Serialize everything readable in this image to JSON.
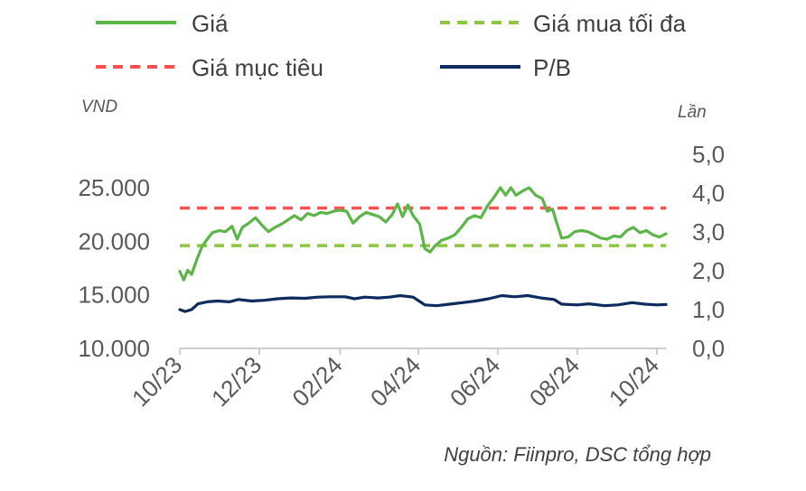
{
  "chart_data": {
    "type": "line",
    "y_left_label": "VND",
    "y_right_label": "Lần",
    "y_left_ticks": [
      "10.000",
      "15.000",
      "20.000",
      "25.000"
    ],
    "y_left_tick_values": [
      10000,
      15000,
      20000,
      25000
    ],
    "y_left_lim": [
      10000,
      28500
    ],
    "y_right_ticks": [
      "0,0",
      "1,0",
      "2,0",
      "3,0",
      "4,0",
      "5,0"
    ],
    "y_right_tick_values": [
      0,
      1,
      2,
      3,
      4,
      5
    ],
    "y_right_lim": [
      0,
      5
    ],
    "x_tick_labels": [
      "10/23",
      "12/23",
      "02/24",
      "04/24",
      "06/24",
      "08/24",
      "10/24"
    ],
    "x_tick_values": [
      "2023-10-01",
      "2023-12-01",
      "2024-02-01",
      "2024-04-01",
      "2024-06-01",
      "2024-08-01",
      "2024-10-01"
    ],
    "x_lim": [
      "2023-10-01",
      "2024-10-08"
    ],
    "grid": false,
    "legend_position": "top",
    "source": "Nguồn: Fiinpro, DSC tổng hợp",
    "series": [
      {
        "name": "Giá",
        "axis": "left",
        "style": "solid",
        "color": "#5cb548",
        "points": [
          [
            "2023-10-01",
            17200
          ],
          [
            "2023-10-04",
            16400
          ],
          [
            "2023-10-07",
            17300
          ],
          [
            "2023-10-10",
            16900
          ],
          [
            "2023-10-14",
            18300
          ],
          [
            "2023-10-18",
            19500
          ],
          [
            "2023-10-22",
            20200
          ],
          [
            "2023-10-26",
            20800
          ],
          [
            "2023-10-31",
            21000
          ],
          [
            "2023-11-05",
            20900
          ],
          [
            "2023-11-10",
            21400
          ],
          [
            "2023-11-14",
            20200
          ],
          [
            "2023-11-18",
            21300
          ],
          [
            "2023-11-23",
            21700
          ],
          [
            "2023-11-28",
            22200
          ],
          [
            "2023-12-03",
            21500
          ],
          [
            "2023-12-08",
            20900
          ],
          [
            "2023-12-13",
            21300
          ],
          [
            "2023-12-18",
            21600
          ],
          [
            "2023-12-23",
            22000
          ],
          [
            "2023-12-28",
            22400
          ],
          [
            "2024-01-02",
            22000
          ],
          [
            "2024-01-07",
            22600
          ],
          [
            "2024-01-12",
            22400
          ],
          [
            "2024-01-17",
            22700
          ],
          [
            "2024-01-22",
            22600
          ],
          [
            "2024-01-27",
            22800
          ],
          [
            "2024-02-01",
            22900
          ],
          [
            "2024-02-06",
            22800
          ],
          [
            "2024-02-11",
            21700
          ],
          [
            "2024-02-16",
            22300
          ],
          [
            "2024-02-21",
            22700
          ],
          [
            "2024-02-26",
            22500
          ],
          [
            "2024-03-02",
            22300
          ],
          [
            "2024-03-07",
            21800
          ],
          [
            "2024-03-12",
            22500
          ],
          [
            "2024-03-16",
            23500
          ],
          [
            "2024-03-20",
            22300
          ],
          [
            "2024-03-24",
            23400
          ],
          [
            "2024-03-28",
            22400
          ],
          [
            "2024-04-02",
            21600
          ],
          [
            "2024-04-06",
            19300
          ],
          [
            "2024-04-10",
            19000
          ],
          [
            "2024-04-14",
            19600
          ],
          [
            "2024-04-19",
            20100
          ],
          [
            "2024-04-24",
            20300
          ],
          [
            "2024-04-29",
            20600
          ],
          [
            "2024-05-04",
            21300
          ],
          [
            "2024-05-09",
            22100
          ],
          [
            "2024-05-14",
            22400
          ],
          [
            "2024-05-19",
            22200
          ],
          [
            "2024-05-24",
            23300
          ],
          [
            "2024-05-29",
            24100
          ],
          [
            "2024-06-03",
            25000
          ],
          [
            "2024-06-07",
            24300
          ],
          [
            "2024-06-11",
            25000
          ],
          [
            "2024-06-15",
            24300
          ],
          [
            "2024-06-20",
            24700
          ],
          [
            "2024-06-25",
            25000
          ],
          [
            "2024-06-30",
            24300
          ],
          [
            "2024-07-05",
            24000
          ],
          [
            "2024-07-09",
            22800
          ],
          [
            "2024-07-13",
            23000
          ],
          [
            "2024-07-16",
            21800
          ],
          [
            "2024-07-20",
            20300
          ],
          [
            "2024-07-25",
            20400
          ],
          [
            "2024-07-30",
            20900
          ],
          [
            "2024-08-04",
            21000
          ],
          [
            "2024-08-09",
            20900
          ],
          [
            "2024-08-14",
            20600
          ],
          [
            "2024-08-19",
            20300
          ],
          [
            "2024-08-24",
            20200
          ],
          [
            "2024-08-29",
            20500
          ],
          [
            "2024-09-03",
            20400
          ],
          [
            "2024-09-08",
            21000
          ],
          [
            "2024-09-13",
            21300
          ],
          [
            "2024-09-18",
            20800
          ],
          [
            "2024-09-23",
            21000
          ],
          [
            "2024-09-28",
            20600
          ],
          [
            "2024-10-03",
            20400
          ],
          [
            "2024-10-08",
            20700
          ]
        ]
      },
      {
        "name": "Giá mua tối đa",
        "axis": "left",
        "style": "dashed",
        "color": "#8dc63f",
        "points": [
          [
            "2023-10-01",
            19600
          ],
          [
            "2024-10-08",
            19600
          ]
        ]
      },
      {
        "name": "Giá mục tiêu",
        "axis": "left",
        "style": "dashed",
        "color": "#ff5050",
        "points": [
          [
            "2023-10-01",
            23100
          ],
          [
            "2024-10-08",
            23100
          ]
        ]
      },
      {
        "name": "P/B",
        "axis": "right",
        "style": "solid",
        "color": "#0d2b5e",
        "points": [
          [
            "2023-10-01",
            1.0
          ],
          [
            "2023-10-05",
            0.95
          ],
          [
            "2023-10-10",
            1.0
          ],
          [
            "2023-10-15",
            1.15
          ],
          [
            "2023-10-22",
            1.2
          ],
          [
            "2023-10-30",
            1.22
          ],
          [
            "2023-11-08",
            1.2
          ],
          [
            "2023-11-15",
            1.26
          ],
          [
            "2023-11-25",
            1.22
          ],
          [
            "2023-12-05",
            1.24
          ],
          [
            "2023-12-15",
            1.28
          ],
          [
            "2023-12-25",
            1.3
          ],
          [
            "2024-01-05",
            1.29
          ],
          [
            "2024-01-15",
            1.32
          ],
          [
            "2024-01-25",
            1.33
          ],
          [
            "2024-02-05",
            1.33
          ],
          [
            "2024-02-12",
            1.28
          ],
          [
            "2024-02-20",
            1.32
          ],
          [
            "2024-03-01",
            1.3
          ],
          [
            "2024-03-10",
            1.32
          ],
          [
            "2024-03-18",
            1.36
          ],
          [
            "2024-03-28",
            1.32
          ],
          [
            "2024-04-06",
            1.12
          ],
          [
            "2024-04-15",
            1.1
          ],
          [
            "2024-04-25",
            1.14
          ],
          [
            "2024-05-05",
            1.18
          ],
          [
            "2024-05-15",
            1.22
          ],
          [
            "2024-05-25",
            1.28
          ],
          [
            "2024-06-04",
            1.36
          ],
          [
            "2024-06-14",
            1.33
          ],
          [
            "2024-06-24",
            1.36
          ],
          [
            "2024-07-04",
            1.3
          ],
          [
            "2024-07-14",
            1.26
          ],
          [
            "2024-07-20",
            1.14
          ],
          [
            "2024-08-01",
            1.12
          ],
          [
            "2024-08-10",
            1.15
          ],
          [
            "2024-08-22",
            1.1
          ],
          [
            "2024-09-01",
            1.12
          ],
          [
            "2024-09-12",
            1.18
          ],
          [
            "2024-09-22",
            1.14
          ],
          [
            "2024-10-01",
            1.12
          ],
          [
            "2024-10-08",
            1.13
          ]
        ]
      }
    ]
  }
}
